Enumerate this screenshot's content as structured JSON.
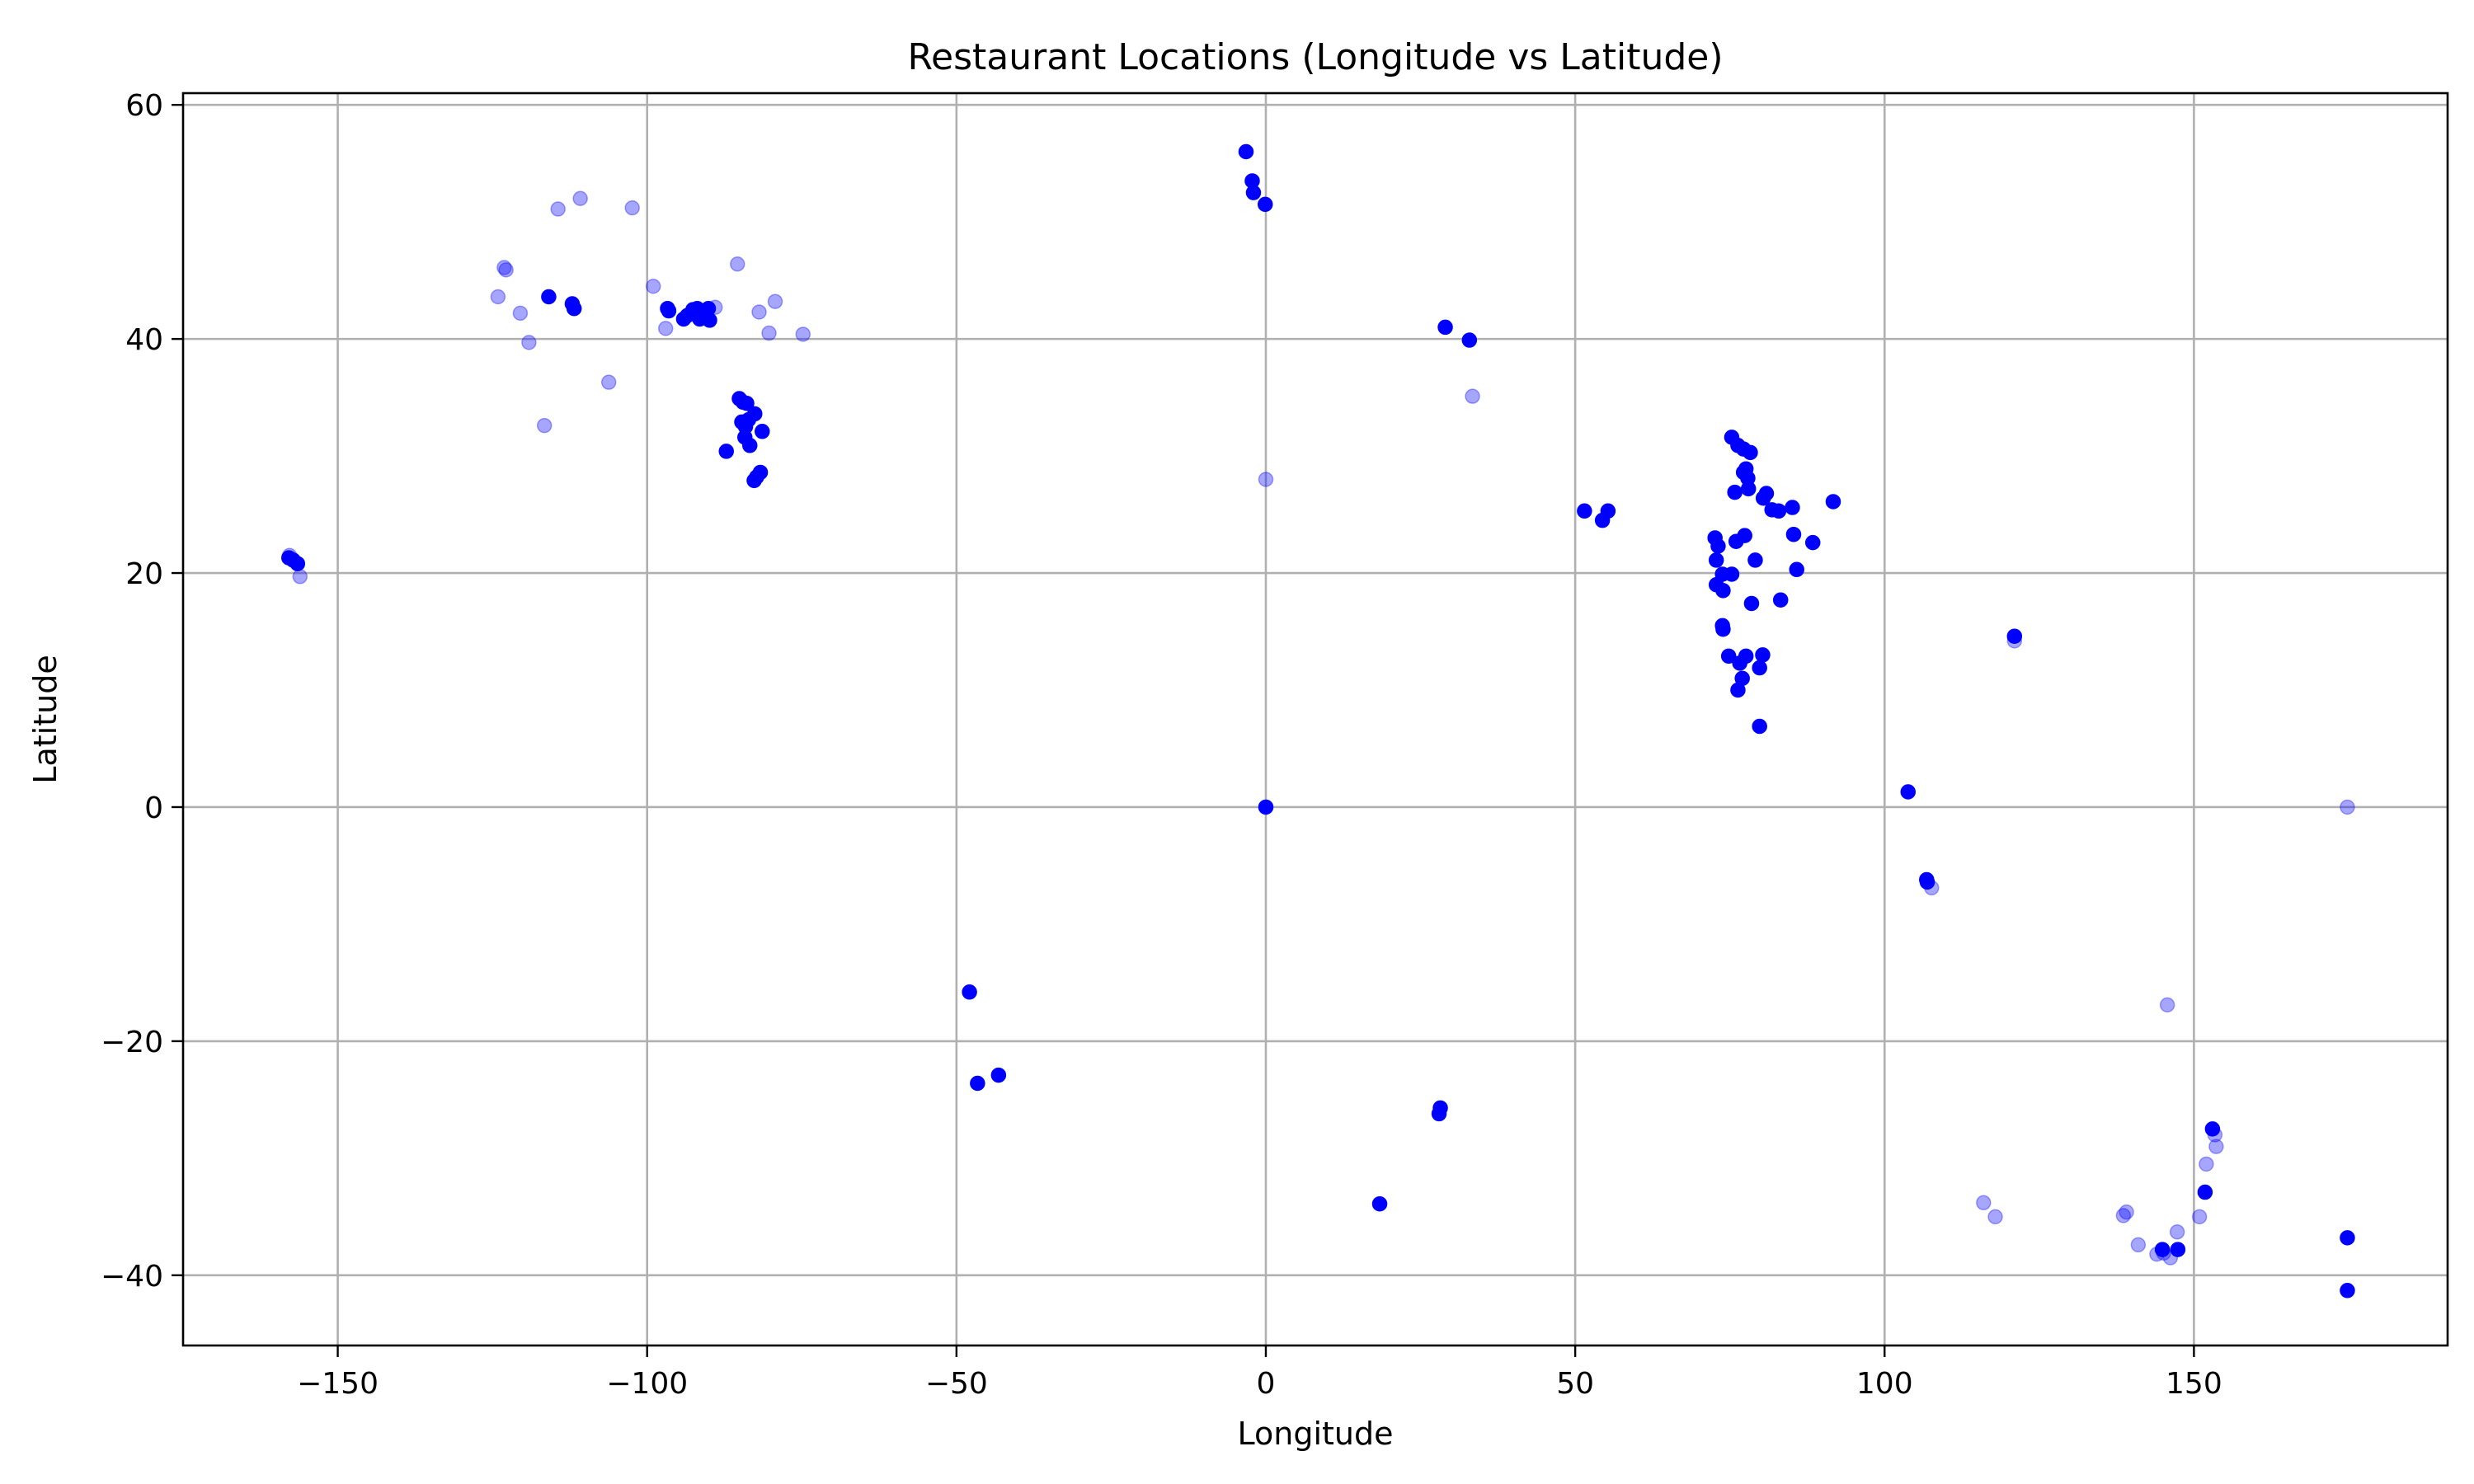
{
  "chart_data": {
    "type": "scatter",
    "title": "Restaurant Locations (Longitude vs Latitude)",
    "xlabel": "Longitude",
    "ylabel": "Latitude",
    "xlim": [
      -175,
      191
    ],
    "ylim": [
      -46,
      61
    ],
    "xticks": [
      -150,
      -100,
      -50,
      0,
      50,
      100,
      150
    ],
    "yticks": [
      -40,
      -20,
      0,
      20,
      40,
      60
    ],
    "xtick_labels": [
      "−150",
      "−100",
      "−50",
      "0",
      "50",
      "100",
      "150"
    ],
    "ytick_labels": [
      "−40",
      "−20",
      "0",
      "20",
      "40",
      "60"
    ],
    "grid": true,
    "marker_color": "#0000ff",
    "faint_opacity": 0.35,
    "points": [
      {
        "x": -157.9,
        "y": 21.3,
        "o": 1
      },
      {
        "x": -157.2,
        "y": 21.1,
        "o": 1
      },
      {
        "x": -156.5,
        "y": 20.8,
        "o": 1
      },
      {
        "x": -156.1,
        "y": 19.7,
        "o": 0.35
      },
      {
        "x": -157.8,
        "y": 21.5,
        "o": 0.35
      },
      {
        "x": -123.1,
        "y": 46.1,
        "o": 0.35
      },
      {
        "x": -122.8,
        "y": 45.9,
        "o": 0.35
      },
      {
        "x": -124.1,
        "y": 43.6,
        "o": 0.35
      },
      {
        "x": -120.5,
        "y": 42.2,
        "o": 0.35
      },
      {
        "x": -119.1,
        "y": 39.7,
        "o": 0.35
      },
      {
        "x": -116.6,
        "y": 32.6,
        "o": 0.35
      },
      {
        "x": -114.4,
        "y": 51.1,
        "o": 0.35
      },
      {
        "x": -110.8,
        "y": 52.0,
        "o": 0.35
      },
      {
        "x": -102.4,
        "y": 51.2,
        "o": 0.35
      },
      {
        "x": -106.2,
        "y": 36.3,
        "o": 0.35
      },
      {
        "x": -99.0,
        "y": 44.5,
        "o": 0.35
      },
      {
        "x": -97.0,
        "y": 40.9,
        "o": 0.35
      },
      {
        "x": -115.9,
        "y": 43.6,
        "o": 1
      },
      {
        "x": -112.1,
        "y": 43.0,
        "o": 1
      },
      {
        "x": -111.8,
        "y": 42.6,
        "o": 1
      },
      {
        "x": -96.7,
        "y": 42.6,
        "o": 1
      },
      {
        "x": -96.5,
        "y": 42.4,
        "o": 1
      },
      {
        "x": -94.1,
        "y": 41.7,
        "o": 1
      },
      {
        "x": -93.5,
        "y": 42.0,
        "o": 1
      },
      {
        "x": -92.6,
        "y": 42.5,
        "o": 1
      },
      {
        "x": -91.9,
        "y": 42.6,
        "o": 1
      },
      {
        "x": -91.5,
        "y": 41.7,
        "o": 1
      },
      {
        "x": -90.7,
        "y": 42.1,
        "o": 1
      },
      {
        "x": -90.1,
        "y": 42.6,
        "o": 1
      },
      {
        "x": -89.9,
        "y": 41.6,
        "o": 1
      },
      {
        "x": -89.0,
        "y": 42.7,
        "o": 0.35
      },
      {
        "x": -85.4,
        "y": 46.4,
        "o": 0.35
      },
      {
        "x": -81.9,
        "y": 42.3,
        "o": 0.35
      },
      {
        "x": -79.3,
        "y": 43.2,
        "o": 0.35
      },
      {
        "x": -80.3,
        "y": 40.5,
        "o": 0.35
      },
      {
        "x": -74.8,
        "y": 40.4,
        "o": 0.35
      },
      {
        "x": -85.1,
        "y": 34.9,
        "o": 1
      },
      {
        "x": -84.5,
        "y": 34.6,
        "o": 1
      },
      {
        "x": -83.9,
        "y": 34.5,
        "o": 1
      },
      {
        "x": -84.7,
        "y": 32.9,
        "o": 1
      },
      {
        "x": -84.1,
        "y": 32.5,
        "o": 1
      },
      {
        "x": -83.6,
        "y": 33.1,
        "o": 1
      },
      {
        "x": -82.6,
        "y": 33.6,
        "o": 1
      },
      {
        "x": -81.4,
        "y": 32.1,
        "o": 1
      },
      {
        "x": -84.2,
        "y": 31.6,
        "o": 1
      },
      {
        "x": -83.4,
        "y": 30.9,
        "o": 1
      },
      {
        "x": -87.2,
        "y": 30.4,
        "o": 1
      },
      {
        "x": -81.7,
        "y": 28.6,
        "o": 1
      },
      {
        "x": -82.3,
        "y": 28.2,
        "o": 1
      },
      {
        "x": -82.7,
        "y": 27.9,
        "o": 1
      },
      {
        "x": -3.2,
        "y": 56.0,
        "o": 1
      },
      {
        "x": -2.2,
        "y": 53.5,
        "o": 1
      },
      {
        "x": -2.0,
        "y": 52.5,
        "o": 1
      },
      {
        "x": -0.1,
        "y": 51.5,
        "o": 1
      },
      {
        "x": 0.0,
        "y": 28.0,
        "o": 0.35
      },
      {
        "x": 0.0,
        "y": 0.0,
        "o": 1
      },
      {
        "x": 29.0,
        "y": 41.0,
        "o": 1
      },
      {
        "x": 32.9,
        "y": 39.9,
        "o": 1
      },
      {
        "x": 33.4,
        "y": 35.1,
        "o": 0.35
      },
      {
        "x": 51.5,
        "y": 25.3,
        "o": 1
      },
      {
        "x": 54.4,
        "y": 24.5,
        "o": 1
      },
      {
        "x": 55.3,
        "y": 25.3,
        "o": 1
      },
      {
        "x": 75.3,
        "y": 31.6,
        "o": 1
      },
      {
        "x": 76.3,
        "y": 30.9,
        "o": 1
      },
      {
        "x": 77.2,
        "y": 30.6,
        "o": 1
      },
      {
        "x": 77.6,
        "y": 28.9,
        "o": 1
      },
      {
        "x": 77.2,
        "y": 28.6,
        "o": 1
      },
      {
        "x": 77.9,
        "y": 28.1,
        "o": 1
      },
      {
        "x": 78.3,
        "y": 30.3,
        "o": 1
      },
      {
        "x": 78.0,
        "y": 27.2,
        "o": 1
      },
      {
        "x": 75.8,
        "y": 26.9,
        "o": 1
      },
      {
        "x": 80.9,
        "y": 26.8,
        "o": 1
      },
      {
        "x": 80.4,
        "y": 26.4,
        "o": 1
      },
      {
        "x": 81.8,
        "y": 25.4,
        "o": 1
      },
      {
        "x": 82.9,
        "y": 25.3,
        "o": 1
      },
      {
        "x": 85.1,
        "y": 25.6,
        "o": 1
      },
      {
        "x": 91.7,
        "y": 26.1,
        "o": 1
      },
      {
        "x": 85.3,
        "y": 23.3,
        "o": 1
      },
      {
        "x": 88.4,
        "y": 22.6,
        "o": 1
      },
      {
        "x": 72.6,
        "y": 23.0,
        "o": 1
      },
      {
        "x": 72.8,
        "y": 21.1,
        "o": 1
      },
      {
        "x": 73.1,
        "y": 22.3,
        "o": 1
      },
      {
        "x": 73.8,
        "y": 19.9,
        "o": 1
      },
      {
        "x": 72.8,
        "y": 19.0,
        "o": 1
      },
      {
        "x": 73.9,
        "y": 18.5,
        "o": 1
      },
      {
        "x": 75.3,
        "y": 19.9,
        "o": 1
      },
      {
        "x": 76.0,
        "y": 22.7,
        "o": 1
      },
      {
        "x": 77.4,
        "y": 23.2,
        "o": 1
      },
      {
        "x": 79.1,
        "y": 21.1,
        "o": 1
      },
      {
        "x": 85.8,
        "y": 20.3,
        "o": 1
      },
      {
        "x": 78.5,
        "y": 17.4,
        "o": 1
      },
      {
        "x": 83.2,
        "y": 17.7,
        "o": 1
      },
      {
        "x": 73.8,
        "y": 15.5,
        "o": 1
      },
      {
        "x": 73.9,
        "y": 15.2,
        "o": 1
      },
      {
        "x": 74.8,
        "y": 12.9,
        "o": 1
      },
      {
        "x": 77.6,
        "y": 12.9,
        "o": 1
      },
      {
        "x": 76.6,
        "y": 12.3,
        "o": 1
      },
      {
        "x": 80.3,
        "y": 13.0,
        "o": 1
      },
      {
        "x": 79.8,
        "y": 11.9,
        "o": 1
      },
      {
        "x": 77.0,
        "y": 11.0,
        "o": 1
      },
      {
        "x": 76.3,
        "y": 10.0,
        "o": 1
      },
      {
        "x": 79.8,
        "y": 6.9,
        "o": 1
      },
      {
        "x": 103.8,
        "y": 1.3,
        "o": 1
      },
      {
        "x": 106.8,
        "y": -6.2,
        "o": 1
      },
      {
        "x": 106.9,
        "y": -6.4,
        "o": 1
      },
      {
        "x": 107.6,
        "y": -6.9,
        "o": 0.35
      },
      {
        "x": 121.0,
        "y": 14.6,
        "o": 1
      },
      {
        "x": 121.0,
        "y": 14.2,
        "o": 0.35
      },
      {
        "x": 174.8,
        "y": 0.0,
        "o": 0.35
      },
      {
        "x": 145.7,
        "y": -16.9,
        "o": 0.35
      },
      {
        "x": 153.0,
        "y": -27.5,
        "o": 1
      },
      {
        "x": 153.4,
        "y": -28.0,
        "o": 0.35
      },
      {
        "x": 153.6,
        "y": -29.0,
        "o": 0.35
      },
      {
        "x": 152.0,
        "y": -30.5,
        "o": 0.35
      },
      {
        "x": 151.8,
        "y": -32.9,
        "o": 1
      },
      {
        "x": 150.9,
        "y": -35.0,
        "o": 0.35
      },
      {
        "x": 147.3,
        "y": -36.3,
        "o": 0.35
      },
      {
        "x": 144.9,
        "y": -37.8,
        "o": 1
      },
      {
        "x": 145.1,
        "y": -38.1,
        "o": 0.35
      },
      {
        "x": 144.0,
        "y": -38.2,
        "o": 0.35
      },
      {
        "x": 146.2,
        "y": -38.5,
        "o": 0.35
      },
      {
        "x": 147.4,
        "y": -37.8,
        "o": 1
      },
      {
        "x": 141.0,
        "y": -37.4,
        "o": 0.35
      },
      {
        "x": 138.6,
        "y": -34.9,
        "o": 0.35
      },
      {
        "x": 139.1,
        "y": -34.6,
        "o": 0.35
      },
      {
        "x": 116.0,
        "y": -33.8,
        "o": 0.35
      },
      {
        "x": 117.9,
        "y": -35.0,
        "o": 0.35
      },
      {
        "x": 174.8,
        "y": -36.8,
        "o": 1
      },
      {
        "x": 174.8,
        "y": -41.3,
        "o": 1
      },
      {
        "x": 18.4,
        "y": -33.9,
        "o": 1
      },
      {
        "x": 28.0,
        "y": -26.2,
        "o": 1
      },
      {
        "x": 28.2,
        "y": -25.7,
        "o": 1
      },
      {
        "x": -47.9,
        "y": -15.8,
        "o": 1
      },
      {
        "x": -46.6,
        "y": -23.6,
        "o": 1
      },
      {
        "x": -43.2,
        "y": -22.9,
        "o": 1
      }
    ]
  }
}
